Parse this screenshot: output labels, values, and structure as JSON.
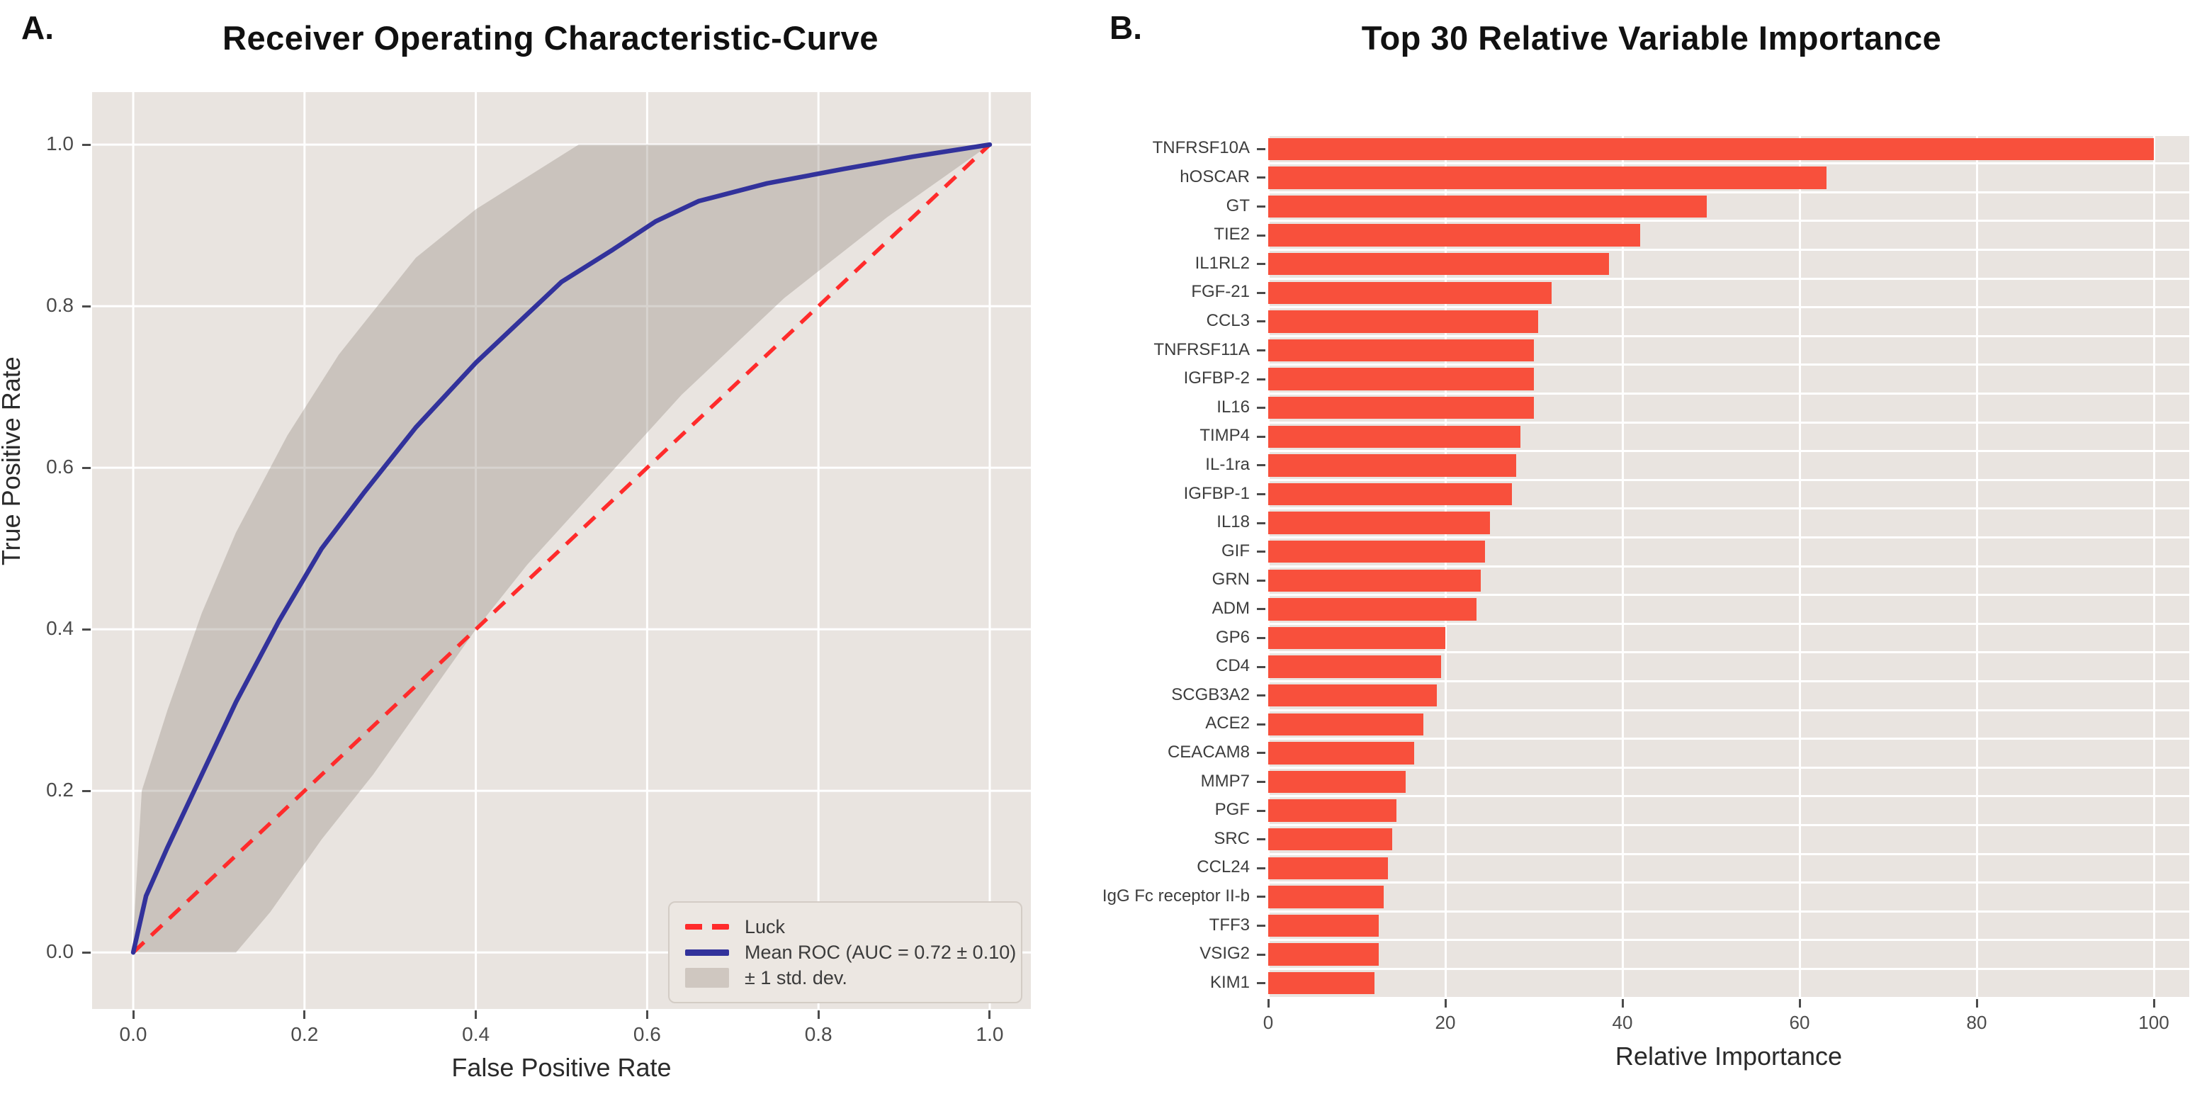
{
  "figure": {
    "panel_a": {
      "panel_label": "A.",
      "title": "Receiver Operating Characteristic-Curve",
      "xlabel": "False Positive Rate",
      "ylabel": "True Positive Rate",
      "x_ticks": [
        "0.0",
        "0.2",
        "0.4",
        "0.6",
        "0.8",
        "1.0"
      ],
      "y_ticks": [
        "0.0",
        "0.2",
        "0.4",
        "0.6",
        "0.8",
        "1.0"
      ],
      "legend": {
        "items": [
          {
            "label": "Luck",
            "swatch": "dashed-line",
            "color": "#ff2b2b"
          },
          {
            "label": "Mean ROC (AUC = 0.72 ± 0.10)",
            "swatch": "solid-line",
            "color": "#32329b"
          },
          {
            "label": "± 1 std. dev.",
            "swatch": "patch",
            "color": "#cfc7c0"
          }
        ]
      }
    },
    "panel_b": {
      "panel_label": "B.",
      "title": "Top 30 Relative Variable Importance",
      "xlabel": "Relative Importance",
      "x_ticks": [
        "0",
        "20",
        "40",
        "60",
        "80",
        "100"
      ]
    }
  },
  "colors": {
    "plot_bg": "#e9e4e0",
    "grid": "#ffffff",
    "band_fill": "#a0968c",
    "band_opacity": 0.42,
    "roc_blue": "#32329b",
    "luck_red": "#ff2b2b",
    "bar_red": "#f8503c",
    "tick_text": "#4b4b4b"
  },
  "chart_data": [
    {
      "type": "line",
      "title": "Receiver Operating Characteristic-Curve",
      "xlabel": "False Positive Rate",
      "ylabel": "True Positive Rate",
      "xlim": [
        -0.048,
        1.048
      ],
      "ylim": [
        -0.07,
        1.065
      ],
      "x_ticks": [
        0,
        0.2,
        0.4,
        0.6,
        0.8,
        1.0
      ],
      "y_ticks": [
        0,
        0.2,
        0.4,
        0.6,
        0.8,
        1.0
      ],
      "grid": true,
      "legend_position": "lower right",
      "series": [
        {
          "name": "Luck",
          "style": "dashed",
          "color": "#ff2b2b",
          "points": [
            [
              0,
              0
            ],
            [
              1,
              1
            ]
          ]
        },
        {
          "name": "Mean ROC (AUC = 0.72 ± 0.10)",
          "style": "solid",
          "color": "#32329b",
          "points": [
            [
              0,
              0
            ],
            [
              0.015,
              0.07
            ],
            [
              0.04,
              0.13
            ],
            [
              0.08,
              0.22
            ],
            [
              0.12,
              0.31
            ],
            [
              0.17,
              0.41
            ],
            [
              0.22,
              0.5
            ],
            [
              0.27,
              0.57
            ],
            [
              0.33,
              0.65
            ],
            [
              0.4,
              0.73
            ],
            [
              0.46,
              0.79
            ],
            [
              0.5,
              0.83
            ],
            [
              0.56,
              0.87
            ],
            [
              0.61,
              0.905
            ],
            [
              0.66,
              0.93
            ],
            [
              0.74,
              0.952
            ],
            [
              0.83,
              0.97
            ],
            [
              0.91,
              0.985
            ],
            [
              1.0,
              1.0
            ]
          ]
        },
        {
          "name": "± 1 std. dev.",
          "style": "band",
          "color": "#a0968c",
          "opacity": 0.42,
          "upper": [
            [
              0,
              0.02
            ],
            [
              0.01,
              0.2
            ],
            [
              0.04,
              0.3
            ],
            [
              0.08,
              0.42
            ],
            [
              0.12,
              0.52
            ],
            [
              0.17,
              0.62
            ],
            [
              0.18,
              0.64
            ],
            [
              0.24,
              0.74
            ],
            [
              0.3,
              0.82
            ],
            [
              0.33,
              0.86
            ],
            [
              0.4,
              0.92
            ],
            [
              0.46,
              0.96
            ],
            [
              0.52,
              1.0
            ],
            [
              1,
              1
            ]
          ],
          "lower": [
            [
              0,
              0
            ],
            [
              0.12,
              0
            ],
            [
              0.16,
              0.05
            ],
            [
              0.22,
              0.14
            ],
            [
              0.28,
              0.22
            ],
            [
              0.34,
              0.31
            ],
            [
              0.4,
              0.4
            ],
            [
              0.46,
              0.48
            ],
            [
              0.52,
              0.55
            ],
            [
              0.58,
              0.62
            ],
            [
              0.64,
              0.69
            ],
            [
              0.7,
              0.75
            ],
            [
              0.76,
              0.81
            ],
            [
              0.82,
              0.86
            ],
            [
              0.88,
              0.91
            ],
            [
              0.94,
              0.955
            ],
            [
              1,
              1
            ]
          ]
        }
      ]
    },
    {
      "type": "bar",
      "orientation": "horizontal",
      "title": "Top 30 Relative Variable Importance",
      "xlabel": "Relative Importance",
      "xlim": [
        0,
        104
      ],
      "x_ticks": [
        0,
        20,
        40,
        60,
        80,
        100
      ],
      "grid": true,
      "bar_color": "#f8503c",
      "categories": [
        "TNFRSF10A",
        "hOSCAR",
        "GT",
        "TIE2",
        "IL1RL2",
        "FGF-21",
        "CCL3",
        "TNFRSF11A",
        "IGFBP-2",
        "IL16",
        "TIMP4",
        "IL-1ra",
        "IGFBP-1",
        "IL18",
        "GIF",
        "GRN",
        "ADM",
        "GP6",
        "CD4",
        "SCGB3A2",
        "ACE2",
        "CEACAM8",
        "MMP7",
        "PGF",
        "SRC",
        "CCL24",
        "IgG Fc receptor II-b",
        "TFF3",
        "VSIG2",
        "KIM1"
      ],
      "values": [
        100,
        63,
        49.5,
        42,
        38.5,
        32,
        30.5,
        30,
        30,
        30,
        28.5,
        28,
        27.5,
        25,
        24.5,
        24,
        23.5,
        20,
        19.5,
        19,
        17.5,
        16.5,
        15.5,
        14.5,
        14,
        13.5,
        13,
        12.5,
        12.5,
        12
      ]
    }
  ]
}
